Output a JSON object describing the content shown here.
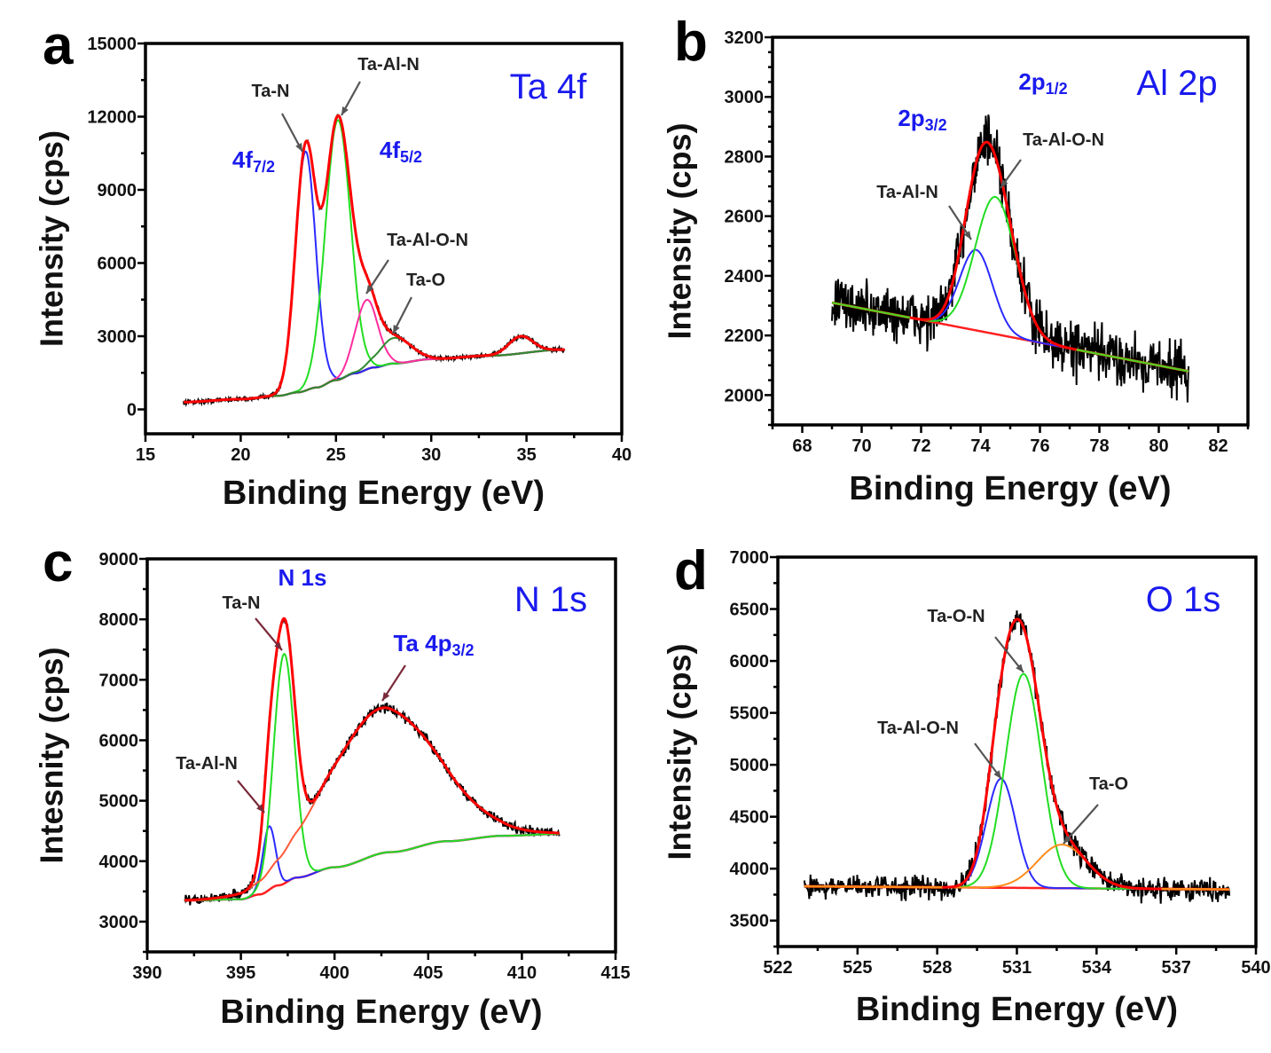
{
  "chart_data": [
    {
      "panel": "a",
      "type": "line",
      "core_level": "Ta 4f",
      "xlabel": "Binding Energy (eV)",
      "ylabel": "Intensity (cps)",
      "xlim": [
        15,
        40
      ],
      "ylim": [
        -1000,
        15000
      ],
      "xticks": [
        15,
        20,
        25,
        30,
        35,
        40
      ],
      "xminor": 2.5,
      "yticks": [
        0,
        3000,
        6000,
        9000,
        12000,
        15000
      ],
      "yminor": 1500,
      "data_range": [
        17,
        37
      ],
      "background": {
        "color": "#8b3a3a",
        "points": [
          [
            17,
            300
          ],
          [
            20,
            420
          ],
          [
            22,
            560
          ],
          [
            23,
            700
          ],
          [
            24,
            900
          ],
          [
            25,
            1200
          ],
          [
            26,
            1480
          ],
          [
            27,
            1720
          ],
          [
            28,
            1880
          ],
          [
            30,
            2060
          ],
          [
            33,
            2200
          ],
          [
            37,
            2450
          ]
        ]
      },
      "components": [
        {
          "name": "Ta-N",
          "center": 23.4,
          "height": 9800,
          "fwhm": 1.25,
          "color": "#2a2aff"
        },
        {
          "name": "Ta-Al-N",
          "center": 25.1,
          "height": 10650,
          "fwhm": 1.55,
          "color": "#22dd22"
        },
        {
          "name": "Ta-Al-O-N",
          "center": 26.6,
          "height": 2850,
          "fwhm": 1.4,
          "color": "#ff2da0"
        },
        {
          "name": "Ta-O",
          "center": 28.1,
          "height": 1050,
          "fwhm": 2.0,
          "color": "#2e8b2e"
        },
        {
          "name": "",
          "center": 34.7,
          "height": 700,
          "fwhm": 1.5,
          "color": null
        }
      ],
      "envelope_color": "#ff0000",
      "annotations": [
        "Ta-N",
        "Ta-Al-N",
        "Ta-Al-O-N",
        "Ta-O"
      ],
      "peak_labels": [
        {
          "text": "4f",
          "sub": "7/2"
        },
        {
          "text": "4f",
          "sub": "5/2"
        }
      ]
    },
    {
      "panel": "b",
      "type": "line",
      "core_level": "Al 2p",
      "xlabel": "Binding Energy (eV)",
      "ylabel": "Intensity (cps)",
      "xlim": [
        67,
        83
      ],
      "ylim": [
        1900,
        3200
      ],
      "xticks": [
        68,
        70,
        72,
        74,
        76,
        78,
        80,
        82
      ],
      "xminor": 1,
      "yticks": [
        2000,
        2200,
        2400,
        2600,
        2800,
        3000,
        3200
      ],
      "yminor": 50,
      "data_range": [
        69,
        81
      ],
      "background": {
        "color": "#ff2020",
        "points": [
          [
            69,
            2310
          ],
          [
            81,
            2080
          ]
        ]
      },
      "overlay_baseline_color": "#55cc22",
      "components": [
        {
          "name": "Ta-Al-N",
          "center": 73.85,
          "height": 270,
          "fwhm": 1.3,
          "color": "#2a2aff"
        },
        {
          "name": "Ta-Al-O-N",
          "center": 74.5,
          "height": 460,
          "fwhm": 1.6,
          "color": "#22dd22"
        }
      ],
      "envelope_color": "#ff0000",
      "annotations": [
        "Ta-Al-O-N",
        "Ta-Al-N"
      ],
      "peak_labels": [
        {
          "text": "2p",
          "sub": "1/2"
        },
        {
          "text": "2p",
          "sub": "3/2"
        }
      ]
    },
    {
      "panel": "c",
      "type": "line",
      "core_level": "N 1s",
      "xlabel": "Binding Energy (eV)",
      "ylabel": "Intesnity (cps)",
      "xlim": [
        390,
        415
      ],
      "ylim": [
        2500,
        9000
      ],
      "xticks": [
        390,
        395,
        400,
        405,
        410,
        415
      ],
      "xminor": 2.5,
      "yticks": [
        3000,
        4000,
        5000,
        6000,
        7000,
        8000,
        9000
      ],
      "yminor": 500,
      "data_range": [
        392,
        412
      ],
      "background": {
        "color": "#ff2020",
        "points": [
          [
            392,
            3350
          ],
          [
            395,
            3370
          ],
          [
            396,
            3450
          ],
          [
            397,
            3600
          ],
          [
            398,
            3730
          ],
          [
            400,
            3900
          ],
          [
            403,
            4150
          ],
          [
            406,
            4330
          ],
          [
            409,
            4420
          ],
          [
            412,
            4450
          ]
        ]
      },
      "components": [
        {
          "name": "Ta-Al-N",
          "center": 396.5,
          "height": 1050,
          "fwhm": 0.8,
          "color": "#2a2aff"
        },
        {
          "name": "Ta-N",
          "center": 397.3,
          "height": 3800,
          "fwhm": 1.3,
          "color": "#22dd22"
        },
        {
          "name": "Ta 4p3/2",
          "center": 402.5,
          "height": 2400,
          "fwhm": 7.0,
          "color": "#ff5a3a"
        }
      ],
      "envelope_color": "#ff0000",
      "annotations": [
        "Ta-N",
        "Ta-Al-N"
      ],
      "peak_labels": [
        {
          "text": "N 1s",
          "sub": ""
        },
        {
          "text": "Ta 4p",
          "sub": "3/2"
        }
      ]
    },
    {
      "panel": "d",
      "type": "line",
      "core_level": "O 1s",
      "xlabel": "Binding Energy (eV)",
      "ylabel": "Intensity (cps)",
      "xlim": [
        522,
        540
      ],
      "ylim": [
        3250,
        7000
      ],
      "xticks": [
        522,
        525,
        528,
        531,
        534,
        537,
        540
      ],
      "xminor": 1.5,
      "yticks": [
        3500,
        4000,
        4500,
        5000,
        5500,
        6000,
        6500,
        7000
      ],
      "yminor": 250,
      "data_range": [
        523,
        539
      ],
      "background": {
        "color": "#ff2020",
        "points": [
          [
            523,
            3830
          ],
          [
            539,
            3800
          ]
        ]
      },
      "overlay_baseline_color": "#ff8c1a",
      "components": [
        {
          "name": "Ta-Al-O-N",
          "center": 530.4,
          "height": 1050,
          "fwhm": 1.3,
          "color": "#2a2aff"
        },
        {
          "name": "Ta-O-N",
          "center": 531.25,
          "height": 2060,
          "fwhm": 1.6,
          "color": "#22dd22"
        },
        {
          "name": "Ta-O",
          "center": 532.7,
          "height": 420,
          "fwhm": 2.2,
          "color": "#ff8c1a"
        }
      ],
      "envelope_color": "#ff0000",
      "annotations": [
        "Ta-O-N",
        "Ta-Al-O-N",
        "Ta-O"
      ],
      "peak_labels": []
    }
  ]
}
